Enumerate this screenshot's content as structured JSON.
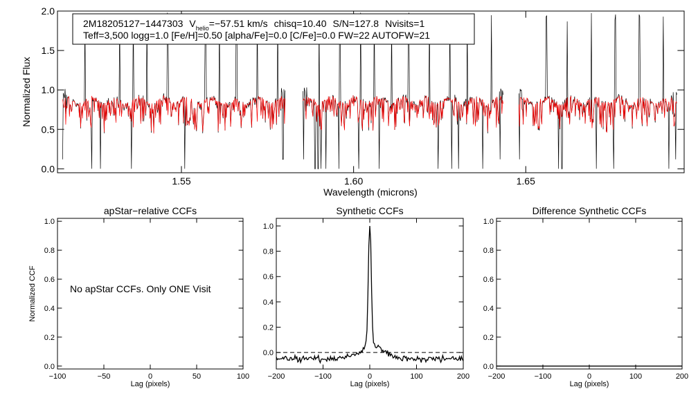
{
  "chart_data": [
    {
      "type": "line",
      "id": "spectrum",
      "xlabel": "Wavelength (microns)",
      "ylabel": "Normalized Flux",
      "xlim": [
        1.514,
        1.696
      ],
      "ylim": [
        -0.05,
        2.0
      ],
      "xticks": [
        1.55,
        1.6,
        1.65
      ],
      "xtick_labels": [
        "1.55",
        "1.60",
        "1.65"
      ],
      "yticks": [
        0.0,
        0.5,
        1.0,
        1.5,
        2.0
      ],
      "ytick_labels": [
        "0.0",
        "0.5",
        "1.0",
        "1.5",
        "2.0"
      ],
      "annotation": {
        "star_id": "2M18205127−1447303",
        "vhelio_label": "V",
        "vhelio_sub": "helio",
        "vhelio_value": "=−57.51 km/s",
        "chisq": "chisq=10.40",
        "snr": "S/N=127.8",
        "nvisits": "Nvisits=1",
        "params": "Teff=3,500 logg=1.0 [Fe/H]=0.50 [alpha/Fe]=0.0 [C/Fe]=0.0 FW=22 AUTOFW=21"
      },
      "chips": [
        [
          1.5155,
          1.5802
        ],
        [
          1.5853,
          1.6435
        ],
        [
          1.648,
          1.694
        ]
      ],
      "continuum": 0.87,
      "series": [
        {
          "name": "observed",
          "color": "#000000"
        },
        {
          "name": "synthetic model",
          "color": "#ff0000"
        }
      ],
      "spikes": [
        1.522,
        1.532,
        1.536,
        1.54,
        1.546,
        1.557,
        1.561,
        1.566,
        1.572,
        1.578,
        1.59,
        1.596,
        1.602,
        1.606,
        1.611,
        1.616,
        1.622,
        1.628,
        1.633,
        1.64,
        1.656,
        1.662,
        1.669,
        1.676,
        1.683,
        1.69
      ],
      "dips": [
        1.5155,
        1.524,
        1.5265,
        1.5355,
        1.551,
        1.5795,
        1.5855,
        1.5888,
        1.5897,
        1.5905,
        1.592,
        1.5958,
        1.6015,
        1.6075,
        1.6245,
        1.6285,
        1.6305,
        1.6375,
        1.6425,
        1.6482,
        1.6595,
        1.6605,
        1.6705,
        1.6755,
        1.6915,
        1.6935
      ]
    },
    {
      "type": "line",
      "id": "apstar_ccf",
      "title": "apStar−relative CCFs",
      "xlabel": "Lag (pixels)",
      "ylabel": "Normalized CCF",
      "xlim": [
        -100,
        100
      ],
      "ylim": [
        -0.02,
        1.02
      ],
      "xticks": [
        -100,
        -50,
        0,
        50,
        100
      ],
      "xtick_labels": [
        "−100",
        "−50",
        "0",
        "50",
        "100"
      ],
      "yticks": [
        0.0,
        0.2,
        0.4,
        0.6,
        0.8,
        1.0
      ],
      "ytick_labels": [
        "0.0",
        "0.2",
        "0.4",
        "0.6",
        "0.8",
        "1.0"
      ],
      "message": "No apStar CCFs.  Only ONE Visit"
    },
    {
      "type": "line",
      "id": "synthetic_ccf",
      "title": "Synthetic CCFs",
      "xlabel": "Lag (pixels)",
      "xlim": [
        -200,
        200
      ],
      "ylim": [
        -0.13,
        1.06
      ],
      "xticks": [
        -200,
        -100,
        0,
        100,
        200
      ],
      "xtick_labels": [
        "−200",
        "−100",
        "0",
        "100",
        "200"
      ],
      "yticks": [
        0.0,
        0.2,
        0.4,
        0.6,
        0.8,
        1.0
      ],
      "ytick_labels": [
        "0.0",
        "0.2",
        "0.4",
        "0.6",
        "0.8",
        "1.0"
      ],
      "reference_line": 0.0,
      "peak": {
        "x": 0,
        "y": 1.0
      }
    },
    {
      "type": "line",
      "id": "difference_ccf",
      "title": "Difference Synthetic CCFs",
      "xlabel": "Lag (pixels)",
      "xlim": [
        -200,
        200
      ],
      "ylim": [
        -0.02,
        1.02
      ],
      "xticks": [
        -200,
        -100,
        0,
        100,
        200
      ],
      "xtick_labels": [
        "−200",
        "−100",
        "0",
        "100",
        "200"
      ],
      "yticks": [
        0.0,
        0.2,
        0.4,
        0.6,
        0.8,
        1.0
      ],
      "ytick_labels": [
        "0.0",
        "0.2",
        "0.4",
        "0.6",
        "0.8",
        "1.0"
      ],
      "values_constant": 0.0
    }
  ]
}
